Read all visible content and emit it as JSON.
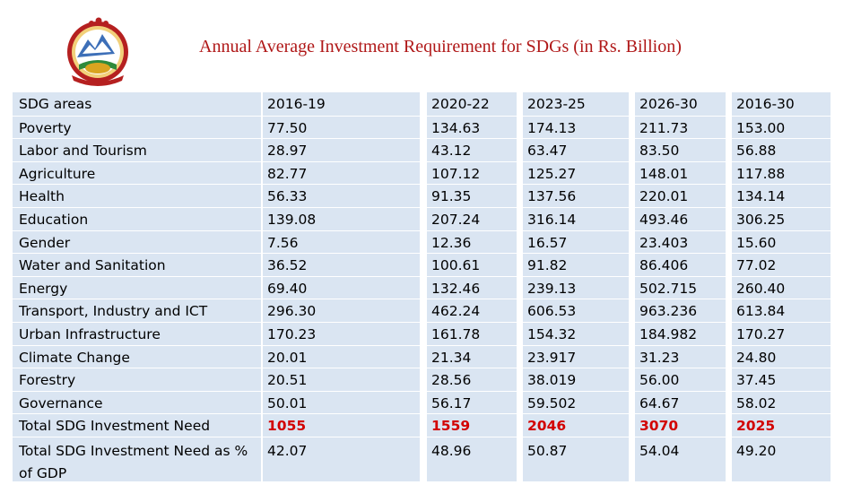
{
  "title": "Annual Average Investment Requirement for SDGs (in Rs. Billion)",
  "logo": {
    "icon": "nepal-emblem-icon"
  },
  "table": {
    "header_label": "SDG areas",
    "columns": [
      "2016-19",
      "2020-22",
      "2023-25",
      "2026-30",
      "2016-30"
    ],
    "rows": [
      {
        "area": "Poverty",
        "values": [
          "77.50",
          "134.63",
          "174.13",
          "211.73",
          "153.00"
        ]
      },
      {
        "area": "Labor and Tourism",
        "values": [
          "28.97",
          "43.12",
          "63.47",
          "83.50",
          "56.88"
        ]
      },
      {
        "area": "Agriculture",
        "values": [
          "82.77",
          "107.12",
          "125.27",
          "148.01",
          "117.88"
        ]
      },
      {
        "area": "Health",
        "values": [
          "56.33",
          "91.35",
          "137.56",
          "220.01",
          "134.14"
        ]
      },
      {
        "area": "Education",
        "values": [
          "139.08",
          "207.24",
          "316.14",
          "493.46",
          "306.25"
        ]
      },
      {
        "area": "Gender",
        "values": [
          "7.56",
          "12.36",
          "16.57",
          "23.403",
          "15.60"
        ]
      },
      {
        "area": "Water and Sanitation",
        "values": [
          "36.52",
          "100.61",
          "91.82",
          "86.406",
          "77.02"
        ]
      },
      {
        "area": "Energy",
        "values": [
          "69.40",
          "132.46",
          "239.13",
          "502.715",
          "260.40"
        ]
      },
      {
        "area": "Transport, Industry and ICT",
        "values": [
          "296.30",
          "462.24",
          "606.53",
          "963.236",
          "613.84"
        ]
      },
      {
        "area": "Urban Infrastructure",
        "values": [
          "170.23",
          "161.78",
          "154.32",
          "184.982",
          "170.27"
        ]
      },
      {
        "area": "Climate Change",
        "values": [
          "20.01",
          "21.34",
          "23.917",
          "31.23",
          "24.80"
        ]
      },
      {
        "area": "Forestry",
        "values": [
          "20.51",
          "28.56",
          "38.019",
          "56.00",
          "37.45"
        ]
      },
      {
        "area": "Governance",
        "values": [
          "50.01",
          "56.17",
          "59.502",
          "64.67",
          "58.02"
        ]
      },
      {
        "area": "Total SDG Investment Need",
        "values": [
          "1055",
          "1559",
          "2046",
          "3070",
          "2025"
        ],
        "highlight": true
      },
      {
        "area": "Total SDG Investment Need as % of GDP",
        "values": [
          "42.07",
          "48.96",
          "50.87",
          "54.04",
          "49.20"
        ]
      }
    ]
  },
  "colors": {
    "title": "#b01818",
    "cell_bg": "#dae5f2",
    "total": "#d20000"
  }
}
